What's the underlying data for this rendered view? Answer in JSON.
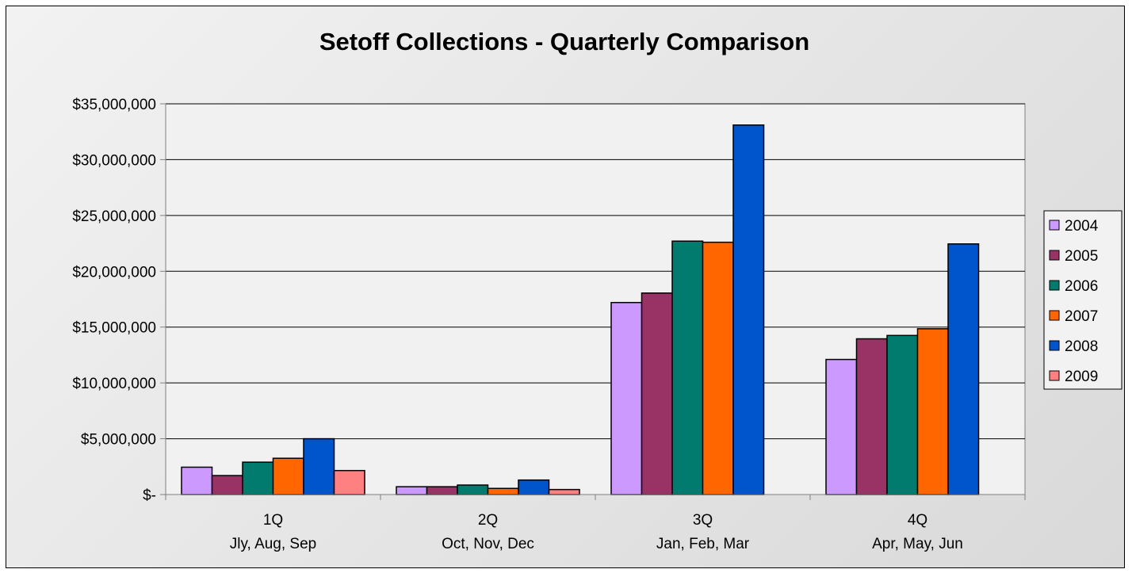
{
  "chart_data": {
    "type": "bar",
    "title": "Setoff Collections - Quarterly Comparison",
    "xlabel": "",
    "ylabel": "",
    "ylim": [
      0,
      35000000
    ],
    "yticks": [
      0,
      5000000,
      10000000,
      15000000,
      20000000,
      25000000,
      30000000,
      35000000
    ],
    "ytick_labels": [
      "$-",
      "$5,000,000",
      "$10,000,000",
      "$15,000,000",
      "$20,000,000",
      "$25,000,000",
      "$30,000,000",
      "$35,000,000"
    ],
    "grid": true,
    "legend_position": "right",
    "categories": [
      {
        "quarter": "1Q",
        "months": "Jly, Aug, Sep"
      },
      {
        "quarter": "2Q",
        "months": "Oct, Nov, Dec"
      },
      {
        "quarter": "3Q",
        "months": "Jan, Feb, Mar"
      },
      {
        "quarter": "4Q",
        "months": "Apr, May, Jun"
      }
    ],
    "series": [
      {
        "name": "2004",
        "color": "#cc99ff",
        "values": [
          2450000,
          700000,
          17200000,
          12100000
        ]
      },
      {
        "name": "2005",
        "color": "#993366",
        "values": [
          1700000,
          700000,
          18050000,
          13950000
        ]
      },
      {
        "name": "2006",
        "color": "#007b6e",
        "values": [
          2900000,
          850000,
          22700000,
          14250000
        ]
      },
      {
        "name": "2007",
        "color": "#ff6600",
        "values": [
          3250000,
          550000,
          22600000,
          14850000
        ]
      },
      {
        "name": "2008",
        "color": "#0055cc",
        "values": [
          5000000,
          1300000,
          33100000,
          22450000
        ]
      },
      {
        "name": "2009",
        "color": "#ff8080",
        "values": [
          2150000,
          450000,
          null,
          null
        ]
      }
    ]
  }
}
